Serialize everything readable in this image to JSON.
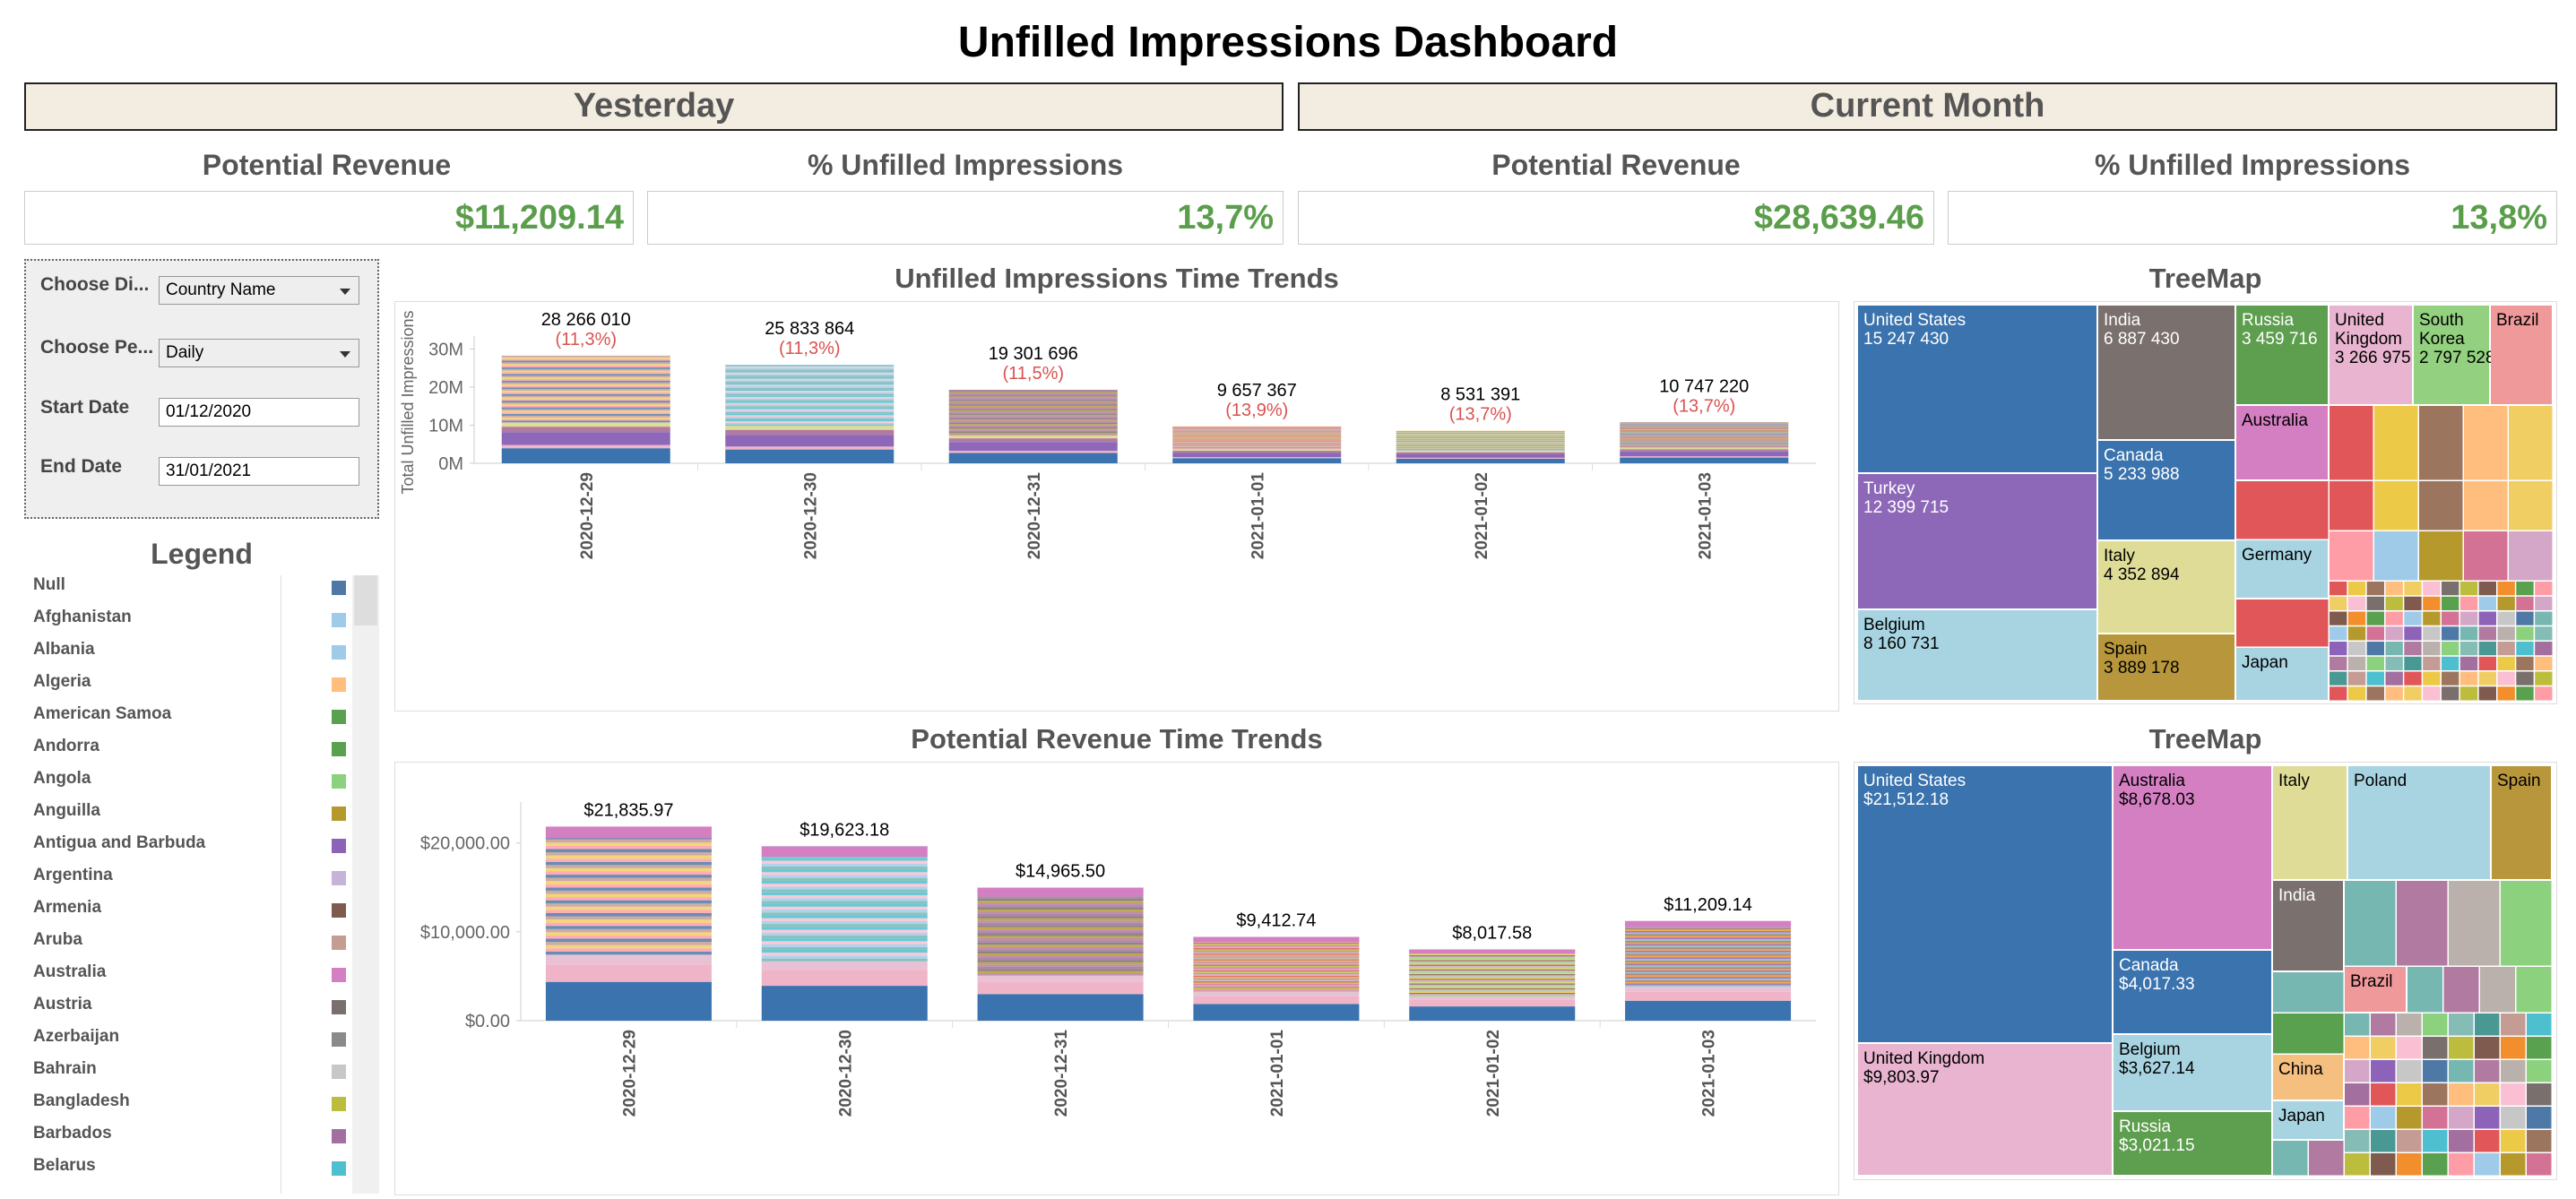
{
  "title": "Unfilled Impressions Dashboard",
  "periods": {
    "yesterday": "Yesterday",
    "current_month": "Current Month"
  },
  "kpis": {
    "y_rev_label": "Potential Revenue",
    "y_rev_value": "$11,209.14",
    "y_unf_label": "% Unfilled Impressions",
    "y_unf_value": "13,7%",
    "m_rev_label": "Potential Revenue",
    "m_rev_value": "$28,639.46",
    "m_unf_label": "% Unfilled Impressions",
    "m_unf_value": "13,8%"
  },
  "params": {
    "dim_label": "Choose Di...",
    "dim_value": "Country Name",
    "period_label": "Choose Pe...",
    "period_value": "Daily",
    "start_label": "Start Date",
    "start_value": "01/12/2020",
    "end_label": "End Date",
    "end_value": "31/01/2021"
  },
  "legend": {
    "title": "Legend",
    "items": [
      {
        "name": "Null",
        "color": "#4e79a7"
      },
      {
        "name": "Afghanistan",
        "color": "#a0cbe8"
      },
      {
        "name": "Albania",
        "color": "#a0cbe8"
      },
      {
        "name": "Algeria",
        "color": "#ffbe7d"
      },
      {
        "name": "American Samoa",
        "color": "#59a14f"
      },
      {
        "name": "Andorra",
        "color": "#59a14f"
      },
      {
        "name": "Angola",
        "color": "#8cd17d"
      },
      {
        "name": "Anguilla",
        "color": "#b6992d"
      },
      {
        "name": "Antigua and Barbuda",
        "color": "#8c63b8"
      },
      {
        "name": "Argentina",
        "color": "#c5b3d8"
      },
      {
        "name": "Armenia",
        "color": "#7f5a4e"
      },
      {
        "name": "Aruba",
        "color": "#c49c94"
      },
      {
        "name": "Australia",
        "color": "#d37fc2"
      },
      {
        "name": "Austria",
        "color": "#79706e"
      },
      {
        "name": "Azerbaijan",
        "color": "#8a8a8a"
      },
      {
        "name": "Bahrain",
        "color": "#c7c7c7"
      },
      {
        "name": "Bangladesh",
        "color": "#bcbd3c"
      },
      {
        "name": "Barbados",
        "color": "#a36f9e"
      },
      {
        "name": "Belarus",
        "color": "#4dbfcf"
      }
    ]
  },
  "colors": {
    "accent_green": "#5a9e4b",
    "label_red": "#d9534f",
    "primary_blue": "#3a73ad"
  },
  "chart_data": [
    {
      "type": "bar",
      "title": "Unfilled Impressions Time Trends",
      "ylabel": "Total Unfilled Impressions",
      "categories": [
        "2020-12-29",
        "2020-12-30",
        "2020-12-31",
        "2021-01-01",
        "2021-01-02",
        "2021-01-03"
      ],
      "values": [
        28266010,
        25833864,
        19301696,
        9657367,
        8531391,
        10747220
      ],
      "value_labels": [
        "28 266 010",
        "25 833 864",
        "19 301 696",
        "9 657 367",
        "8 531 391",
        "10 747 220"
      ],
      "pct_labels": [
        "(11,3%)",
        "(11,3%)",
        "(11,5%)",
        "(13,9%)",
        "(13,7%)",
        "(13,7%)"
      ],
      "yticks": [
        0,
        10000000,
        20000000,
        30000000
      ],
      "ytick_labels": [
        "0M",
        "10M",
        "20M",
        "30M"
      ],
      "ylim": [
        0,
        32000000
      ],
      "stacked_by": "Country Name"
    },
    {
      "type": "bar",
      "title": "Potential Revenue Time Trends",
      "categories": [
        "2020-12-29",
        "2020-12-30",
        "2020-12-31",
        "2021-01-01",
        "2021-01-02",
        "2021-01-03"
      ],
      "values": [
        21835.97,
        19623.18,
        14965.5,
        9412.74,
        8017.58,
        11209.14
      ],
      "value_labels": [
        "$21,835.97",
        "$19,623.18",
        "$14,965.50",
        "$9,412.74",
        "$8,017.58",
        "$11,209.14"
      ],
      "yticks": [
        0,
        10000,
        20000
      ],
      "ytick_labels": [
        "$0.00",
        "$10,000.00",
        "$20,000.00"
      ],
      "ylim": [
        0,
        24000
      ],
      "stacked_by": "Country Name"
    },
    {
      "type": "treemap",
      "title": "TreeMap",
      "labeled": [
        {
          "name": "United States",
          "value": "15 247 430",
          "color": "#3a73ad"
        },
        {
          "name": "India",
          "value": "6 887 430",
          "color": "#7a706d"
        },
        {
          "name": "Russia",
          "value": "3 459 716",
          "color": "#5e9e4f"
        },
        {
          "name": "United Kingdom",
          "value": "3 266 975",
          "color": "#e8b4cf"
        },
        {
          "name": "South Korea",
          "value": "2 797 528",
          "color": "#93d07f"
        },
        {
          "name": "Brazil",
          "value": "",
          "color": "#f0999a"
        },
        {
          "name": "Turkey",
          "value": "12 399 715",
          "color": "#8e68b8"
        },
        {
          "name": "Canada",
          "value": "5 233 988",
          "color": "#3a73ad"
        },
        {
          "name": "Australia",
          "value": "",
          "color": "#d37fc2"
        },
        {
          "name": "Italy",
          "value": "4 352 894",
          "color": "#dedc97"
        },
        {
          "name": "Germany",
          "value": "",
          "color": "#a8d4e2"
        },
        {
          "name": "Belgium",
          "value": "8 160 731",
          "color": "#a8d4e2"
        },
        {
          "name": "Spain",
          "value": "3 889 178",
          "color": "#b7963c"
        },
        {
          "name": "Japan",
          "value": "",
          "color": "#a8d4e2"
        }
      ]
    },
    {
      "type": "treemap",
      "title": "TreeMap",
      "labeled": [
        {
          "name": "United States",
          "value": "$21,512.18",
          "color": "#3a73ad"
        },
        {
          "name": "Australia",
          "value": "$8,678.03",
          "color": "#d37fc2"
        },
        {
          "name": "Italy",
          "value": "",
          "color": "#dedc97"
        },
        {
          "name": "Poland",
          "value": "",
          "color": "#a8d4e2"
        },
        {
          "name": "Spain",
          "value": "",
          "color": "#b7963c"
        },
        {
          "name": "Canada",
          "value": "$4,017.33",
          "color": "#3a73ad"
        },
        {
          "name": "India",
          "value": "",
          "color": "#7a706d"
        },
        {
          "name": "Brazil",
          "value": "",
          "color": "#f0999a"
        },
        {
          "name": "Belgium",
          "value": "$3,627.14",
          "color": "#a8d4e2"
        },
        {
          "name": "China",
          "value": "",
          "color": "#f5bf80"
        },
        {
          "name": "United Kingdom",
          "value": "$9,803.97",
          "color": "#e8b4cf"
        },
        {
          "name": "Japan",
          "value": "",
          "color": "#a8d4e2"
        },
        {
          "name": "Russia",
          "value": "$3,021.15",
          "color": "#5e9e4f"
        }
      ]
    }
  ]
}
